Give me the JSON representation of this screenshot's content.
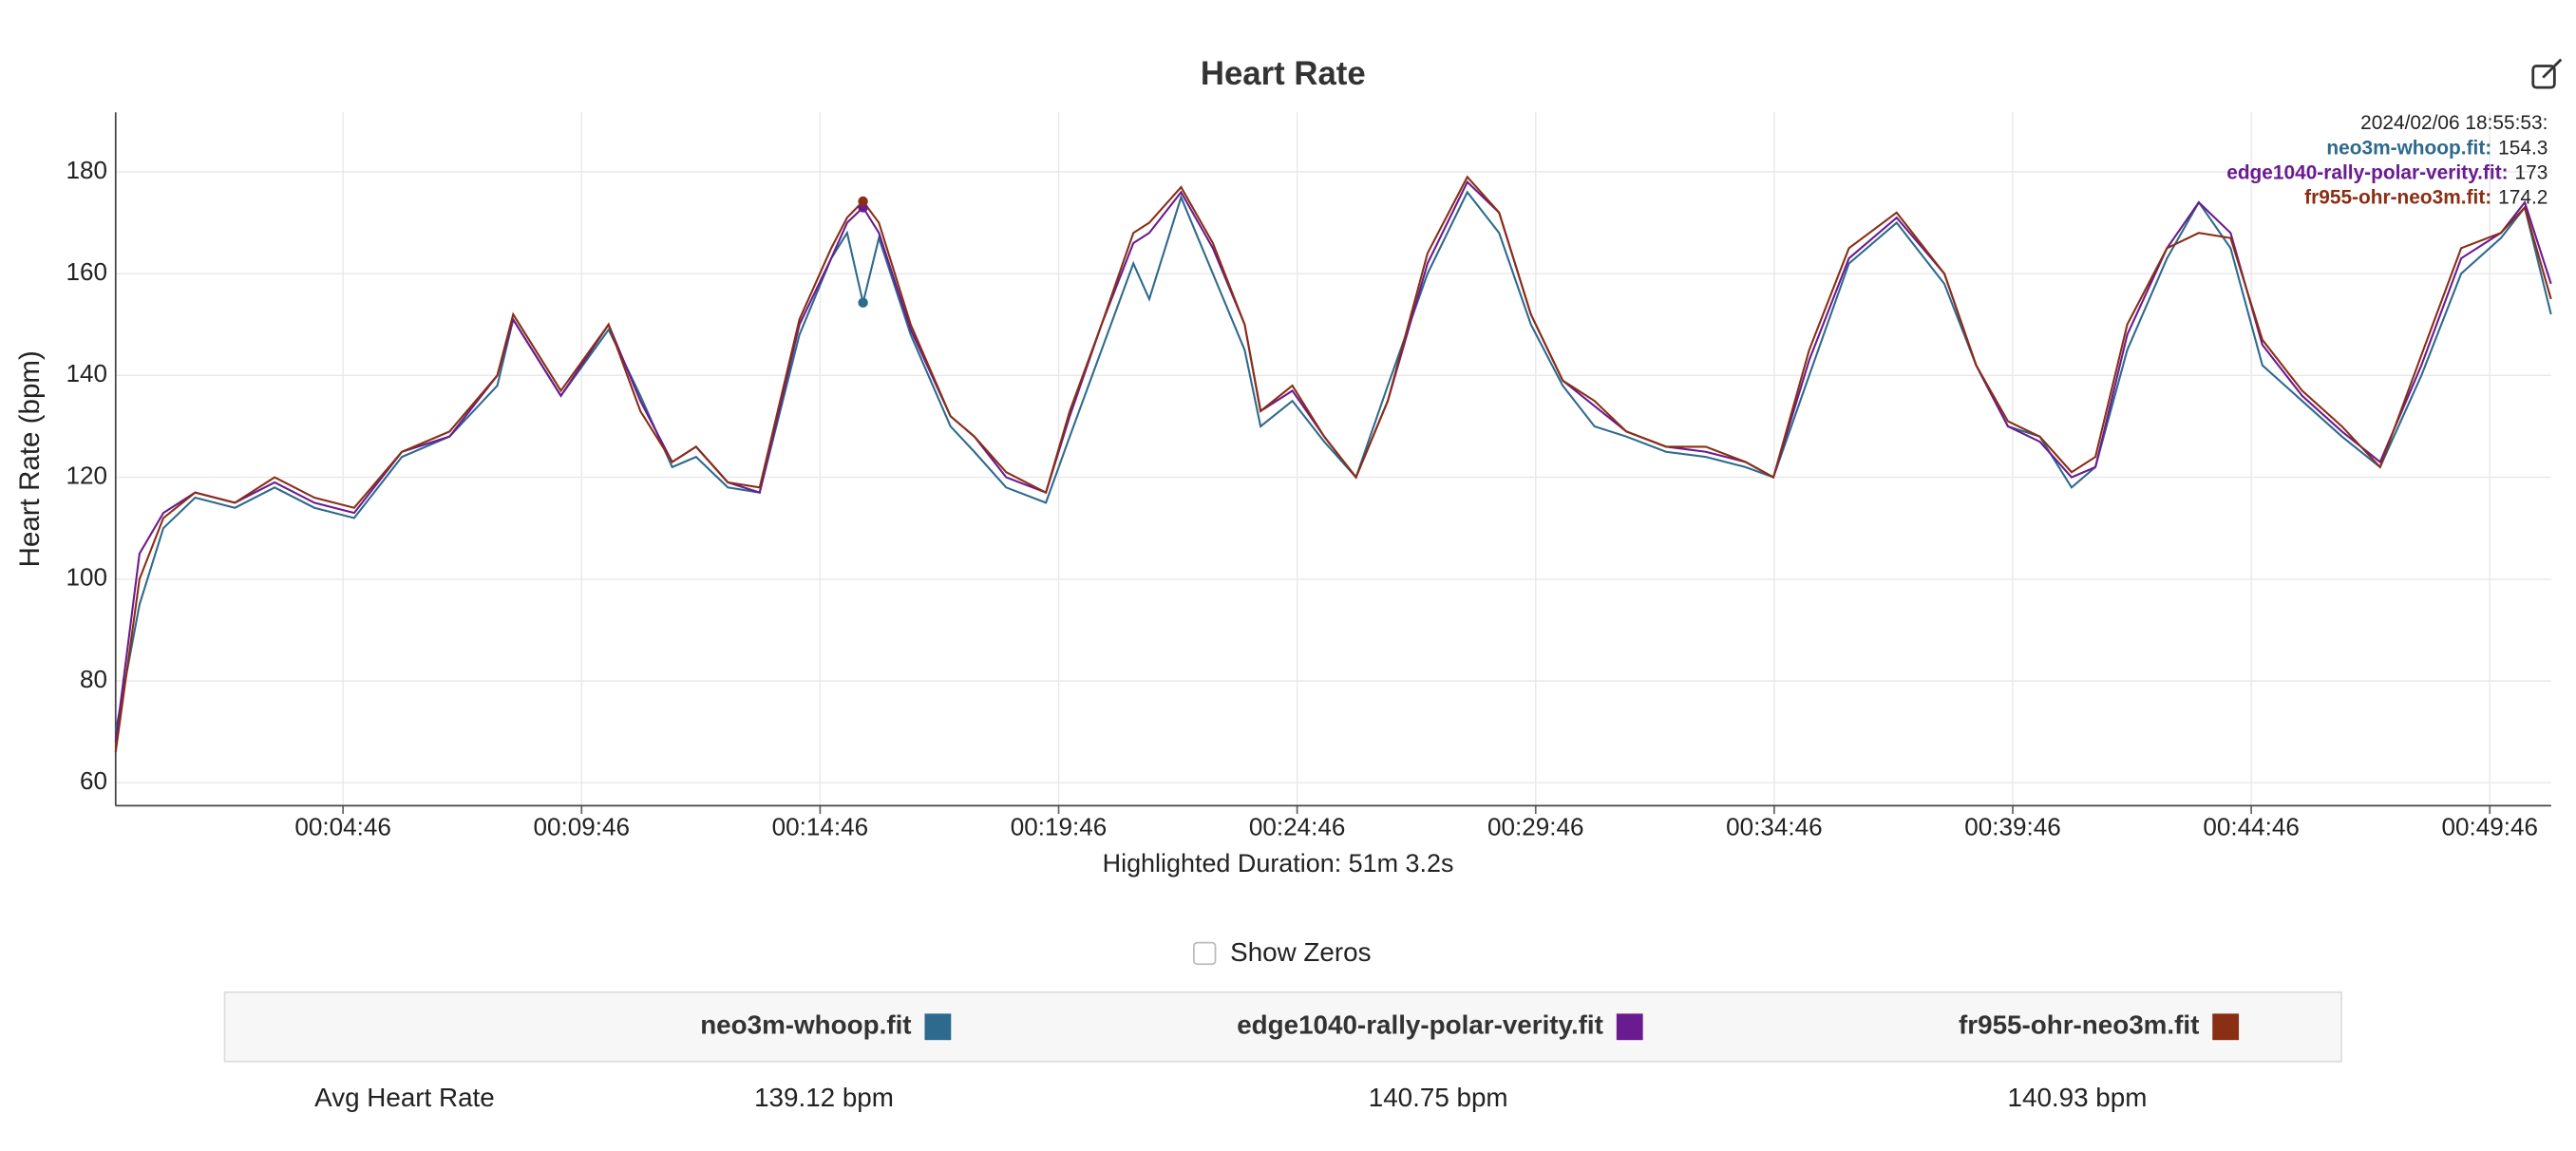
{
  "chart_data": {
    "type": "line",
    "title": "Heart Rate",
    "y_label": "Heart Rate (bpm)",
    "x_label": "Highlighted Duration: 51m 3.2s",
    "x": [
      0,
      30,
      60,
      100,
      150,
      200,
      250,
      300,
      360,
      420,
      480,
      500,
      560,
      620,
      660,
      700,
      730,
      770,
      810,
      860,
      900,
      920,
      940,
      960,
      1000,
      1050,
      1080,
      1120,
      1170,
      1200,
      1240,
      1280,
      1300,
      1340,
      1380,
      1420,
      1440,
      1480,
      1520,
      1560,
      1600,
      1650,
      1700,
      1740,
      1780,
      1820,
      1860,
      1900,
      1950,
      2000,
      2050,
      2085,
      2130,
      2180,
      2240,
      2300,
      2340,
      2380,
      2420,
      2460,
      2490,
      2530,
      2580,
      2620,
      2660,
      2700,
      2750,
      2800,
      2848,
      2900,
      2950,
      3000,
      3030,
      3063
    ],
    "series": [
      {
        "name": "neo3m-whoop.fit",
        "color": "#2d6a8e",
        "values": [
          70,
          95,
          110,
          116,
          114,
          118,
          114,
          112,
          124,
          128,
          138,
          151,
          136,
          149,
          136,
          122,
          124,
          118,
          117,
          148,
          163,
          168,
          154.3,
          167,
          148,
          130,
          125,
          118,
          115,
          128,
          145,
          162,
          155,
          175,
          160,
          145,
          130,
          135,
          127,
          120,
          138,
          160,
          176,
          168,
          150,
          138,
          130,
          128,
          125,
          124,
          122,
          120,
          140,
          162,
          170,
          158,
          142,
          130,
          128,
          118,
          122,
          145,
          163,
          174,
          165,
          142,
          135,
          128,
          122,
          140,
          160,
          167,
          173,
          152
        ]
      },
      {
        "name": "edge1040-rally-polar-verity.fit",
        "color": "#6a1b8f",
        "values": [
          68,
          105,
          113,
          117,
          115,
          119,
          115,
          113,
          125,
          128,
          140,
          151,
          136,
          150,
          135,
          123,
          126,
          119,
          117,
          150,
          163,
          170,
          173,
          168,
          149,
          132,
          128,
          120,
          117,
          132,
          150,
          166,
          168,
          176,
          165,
          150,
          133,
          137,
          128,
          120,
          135,
          162,
          178,
          172,
          152,
          139,
          134,
          129,
          126,
          125,
          123,
          120,
          143,
          163,
          171,
          160,
          142,
          130,
          127,
          120,
          122,
          148,
          165,
          174,
          168,
          146,
          136,
          129,
          123,
          142,
          163,
          168,
          174,
          158
        ]
      },
      {
        "name": "fr955-ohr-neo3m.fit",
        "color": "#8a2e14",
        "values": [
          66,
          100,
          112,
          117,
          115,
          120,
          116,
          114,
          125,
          129,
          140,
          152,
          137,
          150,
          133,
          123,
          126,
          119,
          118,
          151,
          165,
          171,
          174.2,
          170,
          150,
          132,
          128,
          121,
          117,
          133,
          150,
          168,
          170,
          177,
          166,
          150,
          133,
          138,
          128,
          120,
          135,
          164,
          179,
          172,
          152,
          139,
          135,
          129,
          126,
          126,
          123,
          120,
          145,
          165,
          172,
          160,
          142,
          131,
          128,
          121,
          124,
          150,
          165,
          168,
          167,
          147,
          137,
          130,
          122,
          144,
          165,
          168,
          173,
          155
        ]
      }
    ],
    "xlim": [
      0,
      3063.2
    ],
    "ylim": [
      55.5,
      191.7
    ],
    "yticks": [
      60,
      80,
      100,
      120,
      140,
      160,
      180
    ],
    "xticks": [
      {
        "value": 286,
        "label": "00:04:46"
      },
      {
        "value": 586,
        "label": "00:09:46"
      },
      {
        "value": 886,
        "label": "00:14:46"
      },
      {
        "value": 1186,
        "label": "00:19:46"
      },
      {
        "value": 1486,
        "label": "00:24:46"
      },
      {
        "value": 1786,
        "label": "00:29:46"
      },
      {
        "value": 2086,
        "label": "00:34:46"
      },
      {
        "value": 2386,
        "label": "00:39:46"
      },
      {
        "value": 2686,
        "label": "00:44:46"
      },
      {
        "value": 2986,
        "label": "00:49:46"
      }
    ],
    "grid": true,
    "highlight_index": 22,
    "tooltip": {
      "time": "2024/02/06 18:55:53:",
      "labels": [
        "neo3m-whoop.fit:",
        "edge1040-rally-polar-verity.fit:",
        "fr955-ohr-neo3m.fit:"
      ]
    }
  },
  "controls": {
    "show_zeros": "Show Zeros"
  },
  "table": {
    "row_label": "Avg Heart Rate",
    "values": [
      "139.12 bpm",
      "140.75 bpm",
      "140.93 bpm"
    ]
  }
}
